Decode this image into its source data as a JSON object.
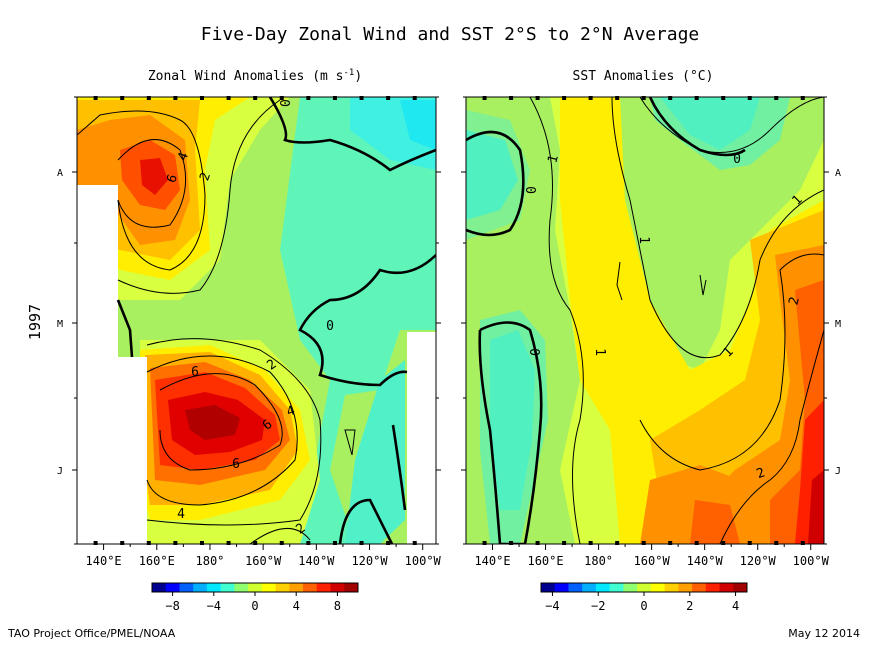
{
  "page": {
    "title": "Five-Day Zonal Wind and SST  2°S to 2°N Average",
    "credit": "TAO Project Office/PMEL/NOAA",
    "date": "May 12 2014",
    "year_label": "1997"
  },
  "chart_data": [
    {
      "type": "heatmap",
      "title": "Zonal Wind Anomalies (m s",
      "title_exponent": "-1",
      "title_close": ")",
      "xlabel": "",
      "ylabel": "1997",
      "x_ticks": [
        "140°E",
        "160°E",
        "180°",
        "160°W",
        "140°W",
        "120°W",
        "100°W"
      ],
      "y_ticks": [
        "A",
        "M",
        "J"
      ],
      "colorbar": {
        "ticks": [
          "−8",
          "−4",
          "0",
          "4",
          "8"
        ],
        "range": [
          -10,
          10
        ],
        "colors": [
          "#00008f",
          "#0000ff",
          "#0060ff",
          "#00b0ff",
          "#00e8ff",
          "#40ffd0",
          "#90ff70",
          "#d0ff30",
          "#ffff00",
          "#ffd000",
          "#ffa000",
          "#ff6000",
          "#ff2000",
          "#d00000",
          "#a00000"
        ]
      },
      "contour_labels": [
        "6",
        "4",
        "2",
        "0",
        "6",
        "4",
        "6",
        "2",
        "4",
        "2",
        "0"
      ],
      "contour_values": [
        0,
        2,
        4,
        6
      ]
    },
    {
      "type": "heatmap",
      "title": "SST Anomalies (°C)",
      "xlabel": "",
      "ylabel": "",
      "x_ticks": [
        "140°E",
        "160°E",
        "180°",
        "160°W",
        "140°W",
        "120°W",
        "100°W"
      ],
      "y_ticks": [
        "A",
        "M",
        "J"
      ],
      "colorbar": {
        "ticks": [
          "−4",
          "−2",
          "0",
          "2",
          "4"
        ],
        "range": [
          -4.5,
          4.5
        ],
        "colors": [
          "#00008f",
          "#0000ff",
          "#0060ff",
          "#00b0ff",
          "#00e8ff",
          "#40ffd0",
          "#90ff70",
          "#d0ff30",
          "#ffff00",
          "#ffd000",
          "#ffa000",
          "#ff6000",
          "#ff2000",
          "#d00000",
          "#a00000"
        ]
      },
      "contour_labels": [
        "0",
        "1",
        "0",
        "1",
        "1",
        "0",
        "1",
        "1",
        "2",
        "2"
      ],
      "contour_values": [
        0,
        1,
        2
      ]
    }
  ]
}
